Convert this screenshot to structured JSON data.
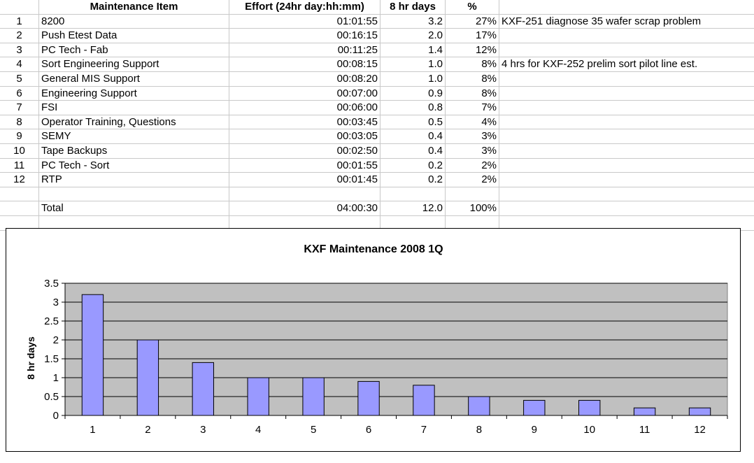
{
  "table": {
    "headers": [
      "",
      "Maintenance Item",
      "Effort (24hr day:hh:mm)",
      "8 hr days",
      "%",
      ""
    ],
    "rows": [
      [
        "1",
        "8200",
        "01:01:55",
        "3.2",
        "27%",
        "KXF-251 diagnose 35 wafer scrap problem"
      ],
      [
        "2",
        "Push Etest Data",
        "00:16:15",
        "2.0",
        "17%",
        ""
      ],
      [
        "3",
        "PC Tech - Fab",
        "00:11:25",
        "1.4",
        "12%",
        ""
      ],
      [
        "4",
        "Sort Engineering Support",
        "00:08:15",
        "1.0",
        "8%",
        "4 hrs for KXF-252 prelim sort pilot line est."
      ],
      [
        "5",
        "General MIS Support",
        "00:08:20",
        "1.0",
        "8%",
        ""
      ],
      [
        "6",
        "Engineering Support",
        "00:07:00",
        "0.9",
        "8%",
        ""
      ],
      [
        "7",
        "FSI",
        "00:06:00",
        "0.8",
        "7%",
        ""
      ],
      [
        "8",
        "Operator Training, Questions",
        "00:03:45",
        "0.5",
        "4%",
        ""
      ],
      [
        "9",
        "SEMY",
        "00:03:05",
        "0.4",
        "3%",
        ""
      ],
      [
        "10",
        "Tape Backups",
        "00:02:50",
        "0.4",
        "3%",
        ""
      ],
      [
        "11",
        "PC Tech - Sort",
        "00:01:55",
        "0.2",
        "2%",
        ""
      ],
      [
        "12",
        "RTP",
        "00:01:45",
        "0.2",
        "2%",
        ""
      ],
      [
        "",
        "",
        "",
        "",
        "",
        ""
      ],
      [
        "",
        "Total",
        "04:00:30",
        "12.0",
        "100%",
        ""
      ],
      [
        "",
        "",
        "",
        "",
        "",
        ""
      ]
    ]
  },
  "colors": {
    "plot_background": "#c0c0c0",
    "bar_fill": "#9999ff",
    "grid_line": "#000000"
  },
  "chart_data": {
    "type": "bar",
    "title": "KXF Maintenance 2008 1Q",
    "xlabel": "",
    "ylabel": "8 hr days",
    "categories": [
      "1",
      "2",
      "3",
      "4",
      "5",
      "6",
      "7",
      "8",
      "9",
      "10",
      "11",
      "12"
    ],
    "values": [
      3.2,
      2.0,
      1.4,
      1.0,
      1.0,
      0.9,
      0.8,
      0.5,
      0.4,
      0.4,
      0.2,
      0.2
    ],
    "yticks": [
      "0",
      "0.5",
      "1",
      "1.5",
      "2",
      "2.5",
      "3",
      "3.5"
    ],
    "ylim": [
      0,
      3.5
    ],
    "grid": true,
    "legend": "none"
  }
}
